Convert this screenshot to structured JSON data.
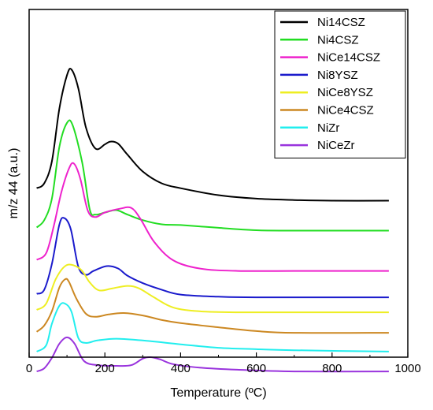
{
  "chart_data": {
    "type": "line",
    "title": "",
    "xlabel": "Temperature (ºC)",
    "ylabel": "m/z 44 (a.u.)",
    "xlim": [
      0,
      1000
    ],
    "ylim": [
      0,
      100
    ],
    "x_ticks": [
      0,
      200,
      400,
      600,
      800,
      1000
    ],
    "y_ticks_shown": false,
    "grid": false,
    "legend_position": "top-right",
    "series": [
      {
        "name": "Ni14CSZ",
        "color": "#000000",
        "points": [
          [
            20,
            48.6
          ],
          [
            40,
            50.0
          ],
          [
            60,
            56.3
          ],
          [
            80,
            71.6
          ],
          [
            100,
            81.1
          ],
          [
            112,
            82.7
          ],
          [
            130,
            77.3
          ],
          [
            150,
            66.1
          ],
          [
            175,
            60.0
          ],
          [
            200,
            61.2
          ],
          [
            215,
            62.0
          ],
          [
            235,
            61.4
          ],
          [
            260,
            58.2
          ],
          [
            300,
            53.4
          ],
          [
            350,
            50.0
          ],
          [
            400,
            48.6
          ],
          [
            500,
            46.6
          ],
          [
            600,
            45.6
          ],
          [
            700,
            45.2
          ],
          [
            800,
            45.0
          ],
          [
            950,
            45.0
          ]
        ]
      },
      {
        "name": "Ni4CSZ",
        "color": "#22dd22",
        "points": [
          [
            20,
            37.3
          ],
          [
            40,
            39.4
          ],
          [
            60,
            45.6
          ],
          [
            80,
            60.6
          ],
          [
            100,
            67.4
          ],
          [
            115,
            66.7
          ],
          [
            140,
            56.1
          ],
          [
            160,
            42.5
          ],
          [
            175,
            41.0
          ],
          [
            200,
            41.6
          ],
          [
            230,
            42.3
          ],
          [
            260,
            41.0
          ],
          [
            300,
            39.4
          ],
          [
            350,
            38.2
          ],
          [
            400,
            38.0
          ],
          [
            500,
            37.2
          ],
          [
            600,
            36.5
          ],
          [
            700,
            36.4
          ],
          [
            950,
            36.4
          ]
        ]
      },
      {
        "name": "NiCe14CSZ",
        "color": "#ee22cc",
        "points": [
          [
            20,
            28.0
          ],
          [
            45,
            29.9
          ],
          [
            65,
            37.7
          ],
          [
            85,
            47.4
          ],
          [
            105,
            54.2
          ],
          [
            118,
            55.7
          ],
          [
            135,
            51.4
          ],
          [
            155,
            42.1
          ],
          [
            175,
            40.3
          ],
          [
            200,
            41.6
          ],
          [
            240,
            42.7
          ],
          [
            270,
            42.9
          ],
          [
            295,
            39.6
          ],
          [
            330,
            33.2
          ],
          [
            380,
            27.9
          ],
          [
            450,
            25.5
          ],
          [
            550,
            24.8
          ],
          [
            700,
            24.8
          ],
          [
            950,
            24.8
          ]
        ]
      },
      {
        "name": "Ni8YSZ",
        "color": "#1a1acc",
        "points": [
          [
            20,
            18.2
          ],
          [
            40,
            19.4
          ],
          [
            60,
            26.8
          ],
          [
            80,
            38.2
          ],
          [
            93,
            40.0
          ],
          [
            110,
            36.8
          ],
          [
            130,
            26.0
          ],
          [
            150,
            23.7
          ],
          [
            170,
            24.8
          ],
          [
            205,
            26.2
          ],
          [
            235,
            25.5
          ],
          [
            260,
            23.4
          ],
          [
            300,
            21.3
          ],
          [
            350,
            19.4
          ],
          [
            400,
            18.0
          ],
          [
            500,
            17.4
          ],
          [
            600,
            17.2
          ],
          [
            950,
            17.2
          ]
        ]
      },
      {
        "name": "NiCe8YSZ",
        "color": "#eeee22",
        "points": [
          [
            20,
            13.6
          ],
          [
            45,
            15.4
          ],
          [
            70,
            22.4
          ],
          [
            95,
            26.2
          ],
          [
            118,
            26.4
          ],
          [
            140,
            24.8
          ],
          [
            160,
            21.5
          ],
          [
            185,
            19.2
          ],
          [
            220,
            19.8
          ],
          [
            260,
            20.5
          ],
          [
            290,
            19.8
          ],
          [
            330,
            17.2
          ],
          [
            380,
            14.3
          ],
          [
            450,
            13.2
          ],
          [
            550,
            12.9
          ],
          [
            700,
            12.9
          ],
          [
            950,
            12.9
          ]
        ]
      },
      {
        "name": "NiCe4CSZ",
        "color": "#cc8822",
        "points": [
          [
            20,
            7.3
          ],
          [
            40,
            9.1
          ],
          [
            60,
            13.2
          ],
          [
            80,
            20.1
          ],
          [
            95,
            22.4
          ],
          [
            105,
            21.7
          ],
          [
            125,
            16.8
          ],
          [
            150,
            12.5
          ],
          [
            175,
            11.6
          ],
          [
            210,
            12.3
          ],
          [
            250,
            12.7
          ],
          [
            300,
            12.0
          ],
          [
            350,
            10.7
          ],
          [
            400,
            9.8
          ],
          [
            500,
            8.6
          ],
          [
            600,
            7.5
          ],
          [
            700,
            7.0
          ],
          [
            950,
            7.0
          ]
        ]
      },
      {
        "name": "NiZr",
        "color": "#22eeee",
        "points": [
          [
            20,
            1.6
          ],
          [
            45,
            3.4
          ],
          [
            60,
            9.6
          ],
          [
            80,
            14.8
          ],
          [
            95,
            15.4
          ],
          [
            112,
            13.0
          ],
          [
            130,
            5.5
          ],
          [
            150,
            4.1
          ],
          [
            180,
            4.8
          ],
          [
            230,
            5.3
          ],
          [
            300,
            4.8
          ],
          [
            400,
            3.7
          ],
          [
            500,
            2.7
          ],
          [
            600,
            2.3
          ],
          [
            700,
            2.0
          ],
          [
            950,
            1.6
          ]
        ]
      },
      {
        "name": "NiCeZr",
        "color": "#9933dd",
        "points": [
          [
            20,
            -4.1
          ],
          [
            40,
            -3.2
          ],
          [
            60,
            -0.2
          ],
          [
            80,
            3.9
          ],
          [
            100,
            5.7
          ],
          [
            120,
            3.9
          ],
          [
            145,
            -1.1
          ],
          [
            180,
            -2.3
          ],
          [
            230,
            -2.5
          ],
          [
            270,
            -2.3
          ],
          [
            300,
            -0.4
          ],
          [
            320,
            0.0
          ],
          [
            345,
            -0.6
          ],
          [
            380,
            -2.0
          ],
          [
            450,
            -3.0
          ],
          [
            550,
            -3.6
          ],
          [
            700,
            -4.1
          ],
          [
            950,
            -4.1
          ]
        ]
      }
    ]
  }
}
